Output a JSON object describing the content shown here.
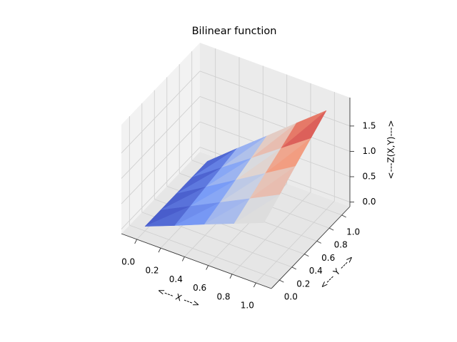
{
  "chart_data": {
    "type": "surface3d",
    "title": "Bilinear function",
    "xlabel": "<--- X --->",
    "ylabel": "<--- Y --->",
    "zlabel": "<---Z(X,Y)--->",
    "colormap": "coolwarm",
    "x": [
      0,
      0.25,
      0.5,
      0.75,
      1
    ],
    "y": [
      0,
      0.25,
      0.5,
      0.75,
      1
    ],
    "z": [
      [
        0,
        0.23,
        0.47,
        0.7,
        0.93
      ],
      [
        0,
        0.29,
        0.58,
        0.87,
        1.16
      ],
      [
        0,
        0.35,
        0.7,
        1.05,
        1.4
      ],
      [
        0,
        0.41,
        0.81,
        1.22,
        1.63
      ],
      [
        0,
        0.47,
        0.93,
        1.4,
        1.86
      ]
    ],
    "xlim": [
      -0.13,
      1.13
    ],
    "ylim": [
      -0.13,
      1.13
    ],
    "zlim": [
      -0.09,
      2.06
    ],
    "xticks": [
      {
        "value": 0,
        "label": "0.0"
      },
      {
        "value": 0.2,
        "label": "0.2"
      },
      {
        "value": 0.4,
        "label": "0.4"
      },
      {
        "value": 0.6,
        "label": "0.6"
      },
      {
        "value": 0.8,
        "label": "0.8"
      },
      {
        "value": 1,
        "label": "1.0"
      }
    ],
    "yticks": [
      {
        "value": 0,
        "label": "0.0"
      },
      {
        "value": 0.2,
        "label": "0.2"
      },
      {
        "value": 0.4,
        "label": "0.4"
      },
      {
        "value": 0.6,
        "label": "0.6"
      },
      {
        "value": 0.8,
        "label": "0.8"
      },
      {
        "value": 1,
        "label": "1.0"
      }
    ],
    "zticks": [
      {
        "value": 0,
        "label": "0.0"
      },
      {
        "value": 0.5,
        "label": "0.5"
      },
      {
        "value": 1,
        "label": "1.0"
      },
      {
        "value": 1.5,
        "label": "1.5"
      }
    ],
    "grid": true
  }
}
